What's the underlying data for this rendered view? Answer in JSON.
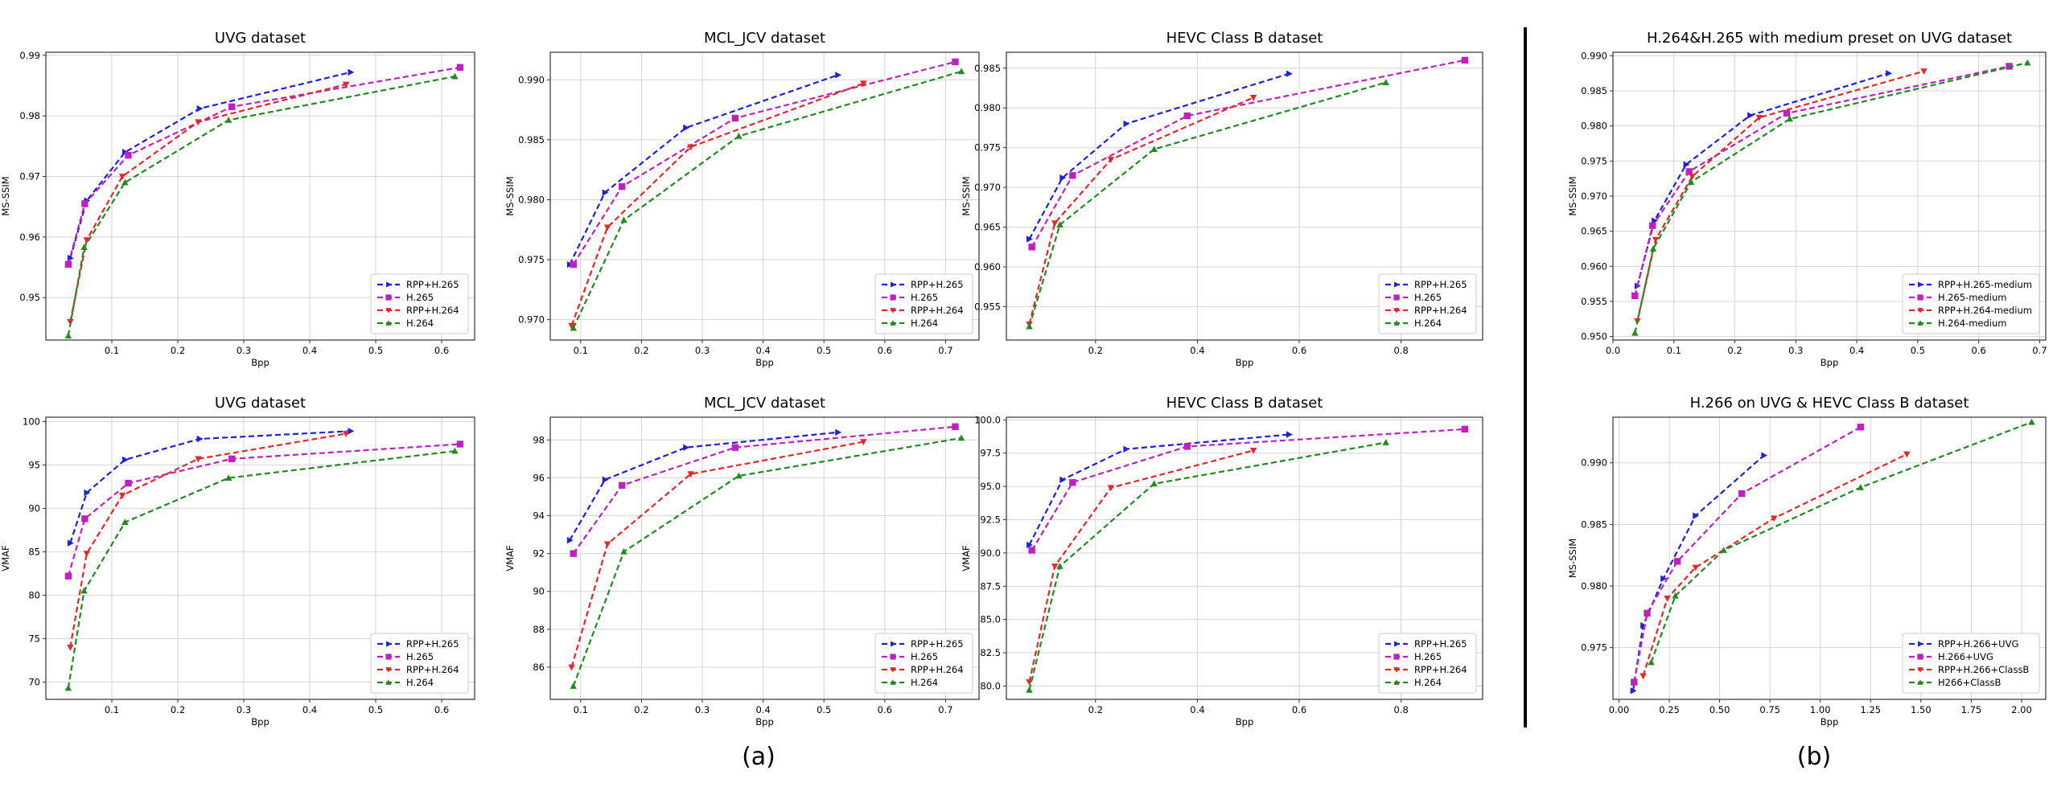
{
  "colors": {
    "rpp265": "#1f1fe0",
    "h265": "#c020c0",
    "rpp264": "#e8262a",
    "h264": "#218a21",
    "grid": "#d4d4d4",
    "axis": "#333333",
    "divider": "#000000"
  },
  "panel_labels": [
    "(a)",
    "(b)"
  ],
  "chart_data": [
    {
      "type": "line",
      "title": "UVG dataset",
      "xlabel": "Bpp",
      "ylabel": "MS-SSIM",
      "xlim": [
        0.0,
        0.65
      ],
      "ylim": [
        0.943,
        0.9905
      ],
      "xticks": [
        0.1,
        0.2,
        0.3,
        0.4,
        0.5,
        0.6
      ],
      "xtick_labels": [
        "0.1",
        "0.2",
        "0.3",
        "0.4",
        "0.5",
        "0.6"
      ],
      "yticks": [
        0.95,
        0.96,
        0.97,
        0.98,
        0.99
      ],
      "ytick_labels": [
        "0.95",
        "0.96",
        "0.97",
        "0.98",
        "0.99"
      ],
      "grid": true,
      "legend_position": "lower-right",
      "series": [
        {
          "name": "RPP+H.265",
          "marker": "right-triangle",
          "color_key": "rpp265",
          "x": [
            0.037,
            0.062,
            0.12,
            0.233,
            0.462
          ],
          "y": [
            0.9565,
            0.966,
            0.974,
            0.9812,
            0.9872
          ]
        },
        {
          "name": "H.265",
          "marker": "square",
          "color_key": "h265",
          "x": [
            0.034,
            0.059,
            0.125,
            0.282,
            0.628
          ],
          "y": [
            0.9555,
            0.9655,
            0.9735,
            0.9815,
            0.988
          ]
        },
        {
          "name": "RPP+H.264",
          "marker": "down-triangle",
          "color_key": "rpp264",
          "x": [
            0.037,
            0.062,
            0.116,
            0.231,
            0.455
          ],
          "y": [
            0.946,
            0.9595,
            0.97,
            0.979,
            0.9852
          ]
        },
        {
          "name": "H.264",
          "marker": "up-triangle",
          "color_key": "h264",
          "x": [
            0.034,
            0.058,
            0.12,
            0.277,
            0.62
          ],
          "y": [
            0.9437,
            0.9583,
            0.969,
            0.9793,
            0.9865
          ]
        }
      ]
    },
    {
      "type": "line",
      "title": "MCL_JCV dataset",
      "xlabel": "Bpp",
      "ylabel": "MS-SSIM",
      "xlim": [
        0.05,
        0.755
      ],
      "ylim": [
        0.9683,
        0.9923
      ],
      "xticks": [
        0.1,
        0.2,
        0.3,
        0.4,
        0.5,
        0.6,
        0.7
      ],
      "xtick_labels": [
        "0.1",
        "0.2",
        "0.3",
        "0.4",
        "0.5",
        "0.6",
        "0.7"
      ],
      "yticks": [
        0.97,
        0.975,
        0.98,
        0.985,
        0.99
      ],
      "ytick_labels": [
        "0.970",
        "0.975",
        "0.980",
        "0.985",
        "0.990"
      ],
      "grid": true,
      "legend_position": "lower-right",
      "series": [
        {
          "name": "RPP+H.265",
          "marker": "right-triangle",
          "color_key": "rpp265",
          "x": [
            0.082,
            0.14,
            0.273,
            0.523
          ],
          "y": [
            0.9746,
            0.9806,
            0.986,
            0.9904
          ]
        },
        {
          "name": "H.265",
          "marker": "square",
          "color_key": "h265",
          "x": [
            0.088,
            0.168,
            0.354,
            0.716
          ],
          "y": [
            0.9746,
            0.9811,
            0.9868,
            0.9915
          ]
        },
        {
          "name": "RPP+H.264",
          "marker": "down-triangle",
          "color_key": "rpp264",
          "x": [
            0.085,
            0.144,
            0.281,
            0.565
          ],
          "y": [
            0.9695,
            0.9777,
            0.9844,
            0.9897
          ]
        },
        {
          "name": "H.264",
          "marker": "up-triangle",
          "color_key": "h264",
          "x": [
            0.088,
            0.171,
            0.36,
            0.726
          ],
          "y": [
            0.9693,
            0.9783,
            0.9853,
            0.9907
          ]
        }
      ]
    },
    {
      "type": "line",
      "title": "HEVC Class B  dataset",
      "xlabel": "Bpp",
      "ylabel": "MS-SSIM",
      "xlim": [
        0.025,
        0.96
      ],
      "ylim": [
        0.9508,
        0.987
      ],
      "xticks": [
        0.2,
        0.4,
        0.6,
        0.8
      ],
      "xtick_labels": [
        "0.2",
        "0.4",
        "0.6",
        "0.8"
      ],
      "yticks": [
        0.955,
        0.96,
        0.965,
        0.97,
        0.975,
        0.98,
        0.985
      ],
      "ytick_labels": [
        "0.955",
        "0.960",
        "0.965",
        "0.970",
        "0.975",
        "0.980",
        "0.985"
      ],
      "grid": true,
      "legend_position": "lower-right",
      "series": [
        {
          "name": "RPP+H.265",
          "marker": "right-triangle",
          "color_key": "rpp265",
          "x": [
            0.07,
            0.135,
            0.26,
            0.58
          ],
          "y": [
            0.9635,
            0.9712,
            0.978,
            0.9843
          ]
        },
        {
          "name": "H.265",
          "marker": "square",
          "color_key": "h265",
          "x": [
            0.075,
            0.155,
            0.38,
            0.925
          ],
          "y": [
            0.9625,
            0.9715,
            0.979,
            0.986
          ]
        },
        {
          "name": "RPP+H.264",
          "marker": "down-triangle",
          "color_key": "rpp264",
          "x": [
            0.07,
            0.12,
            0.23,
            0.51
          ],
          "y": [
            0.9528,
            0.9655,
            0.9735,
            0.9813
          ]
        },
        {
          "name": "H.264",
          "marker": "up-triangle",
          "color_key": "h264",
          "x": [
            0.07,
            0.13,
            0.315,
            0.77
          ],
          "y": [
            0.9525,
            0.9653,
            0.9748,
            0.9832
          ]
        }
      ]
    },
    {
      "type": "line",
      "title": "H.264&H.265 with medium preset on UVG dataset",
      "xlabel": "Bpp",
      "ylabel": "MS-SSIM",
      "xlim": [
        0.0,
        0.71
      ],
      "ylim": [
        0.9495,
        0.9905
      ],
      "xticks": [
        0.0,
        0.1,
        0.2,
        0.3,
        0.4,
        0.5,
        0.6,
        0.7
      ],
      "xtick_labels": [
        "0.0",
        "0.1",
        "0.2",
        "0.3",
        "0.4",
        "0.5",
        "0.6",
        "0.7"
      ],
      "yticks": [
        0.95,
        0.955,
        0.96,
        0.965,
        0.97,
        0.975,
        0.98,
        0.985,
        0.99
      ],
      "ytick_labels": [
        "0.950",
        "0.955",
        "0.960",
        "0.965",
        "0.970",
        "0.975",
        "0.980",
        "0.985",
        "0.990"
      ],
      "grid": true,
      "legend_position": "lower-right",
      "series": [
        {
          "name": "RPP+H.265-medium",
          "marker": "right-triangle",
          "color_key": "rpp265",
          "x": [
            0.04,
            0.068,
            0.12,
            0.225,
            0.452
          ],
          "y": [
            0.9572,
            0.9665,
            0.9745,
            0.9815,
            0.9875
          ]
        },
        {
          "name": "H.265-medium",
          "marker": "square",
          "color_key": "h265",
          "x": [
            0.036,
            0.065,
            0.125,
            0.285,
            0.65
          ],
          "y": [
            0.9558,
            0.9658,
            0.9735,
            0.9818,
            0.9885
          ]
        },
        {
          "name": "RPP+H.264-medium",
          "marker": "down-triangle",
          "color_key": "rpp264",
          "x": [
            0.04,
            0.07,
            0.13,
            0.24,
            0.51
          ],
          "y": [
            0.9522,
            0.9638,
            0.9728,
            0.9812,
            0.9878
          ]
        },
        {
          "name": "H.264-medium",
          "marker": "up-triangle",
          "color_key": "h264",
          "x": [
            0.036,
            0.066,
            0.128,
            0.29,
            0.68
          ],
          "y": [
            0.9505,
            0.9625,
            0.972,
            0.981,
            0.989
          ]
        }
      ]
    },
    {
      "type": "line",
      "title": "UVG dataset",
      "xlabel": "Bpp",
      "ylabel": "VMAF",
      "xlim": [
        0.0,
        0.65
      ],
      "ylim": [
        68.0,
        100.5
      ],
      "xticks": [
        0.1,
        0.2,
        0.3,
        0.4,
        0.5,
        0.6
      ],
      "xtick_labels": [
        "0.1",
        "0.2",
        "0.3",
        "0.4",
        "0.5",
        "0.6"
      ],
      "yticks": [
        70,
        75,
        80,
        85,
        90,
        95,
        100
      ],
      "ytick_labels": [
        "70",
        "75",
        "80",
        "85",
        "90",
        "95",
        "100"
      ],
      "grid": true,
      "legend_position": "lower-right",
      "series": [
        {
          "name": "RPP+H.265",
          "marker": "right-triangle",
          "color_key": "rpp265",
          "x": [
            0.037,
            0.062,
            0.12,
            0.233,
            0.462
          ],
          "y": [
            86.0,
            91.8,
            95.6,
            98.0,
            98.9
          ]
        },
        {
          "name": "H.265",
          "marker": "square",
          "color_key": "h265",
          "x": [
            0.034,
            0.059,
            0.125,
            0.282,
            0.628
          ],
          "y": [
            82.2,
            88.8,
            92.9,
            95.7,
            97.4
          ]
        },
        {
          "name": "RPP+H.264",
          "marker": "down-triangle",
          "color_key": "rpp264",
          "x": [
            0.037,
            0.062,
            0.116,
            0.231,
            0.455
          ],
          "y": [
            74.0,
            84.8,
            91.5,
            95.7,
            98.6
          ]
        },
        {
          "name": "H.264",
          "marker": "up-triangle",
          "color_key": "h264",
          "x": [
            0.034,
            0.058,
            0.12,
            0.277,
            0.62
          ],
          "y": [
            69.3,
            80.5,
            88.4,
            93.5,
            96.6
          ]
        }
      ]
    },
    {
      "type": "line",
      "title": "MCL_JCV dataset",
      "xlabel": "Bpp",
      "ylabel": "VMAF",
      "xlim": [
        0.05,
        0.755
      ],
      "ylim": [
        84.3,
        99.2
      ],
      "xticks": [
        0.1,
        0.2,
        0.3,
        0.4,
        0.5,
        0.6,
        0.7
      ],
      "xtick_labels": [
        "0.1",
        "0.2",
        "0.3",
        "0.4",
        "0.5",
        "0.6",
        "0.7"
      ],
      "yticks": [
        86,
        88,
        90,
        92,
        94,
        96,
        98
      ],
      "ytick_labels": [
        "86",
        "88",
        "90",
        "92",
        "94",
        "96",
        "98"
      ],
      "grid": true,
      "legend_position": "lower-right",
      "series": [
        {
          "name": "RPP+H.265",
          "marker": "right-triangle",
          "color_key": "rpp265",
          "x": [
            0.082,
            0.14,
            0.273,
            0.523
          ],
          "y": [
            92.7,
            95.9,
            97.6,
            98.4
          ]
        },
        {
          "name": "H.265",
          "marker": "square",
          "color_key": "h265",
          "x": [
            0.088,
            0.168,
            0.354,
            0.716
          ],
          "y": [
            92.0,
            95.6,
            97.6,
            98.7
          ]
        },
        {
          "name": "RPP+H.264",
          "marker": "down-triangle",
          "color_key": "rpp264",
          "x": [
            0.085,
            0.144,
            0.281,
            0.565
          ],
          "y": [
            86.0,
            92.5,
            96.2,
            97.9
          ]
        },
        {
          "name": "H.264",
          "marker": "up-triangle",
          "color_key": "h264",
          "x": [
            0.088,
            0.171,
            0.36,
            0.726
          ],
          "y": [
            85.0,
            92.1,
            96.1,
            98.1
          ]
        }
      ]
    },
    {
      "type": "line",
      "title": "HEVC Class B dataset",
      "xlabel": "Bpp",
      "ylabel": "VMAF",
      "xlim": [
        0.025,
        0.96
      ],
      "ylim": [
        79.0,
        100.2
      ],
      "xticks": [
        0.2,
        0.4,
        0.6,
        0.8
      ],
      "xtick_labels": [
        "0.2",
        "0.4",
        "0.6",
        "0.8"
      ],
      "yticks": [
        80.0,
        82.5,
        85.0,
        87.5,
        90.0,
        92.5,
        95.0,
        97.5,
        100.0
      ],
      "ytick_labels": [
        "80.0",
        "82.5",
        "85.0",
        "87.5",
        "90.0",
        "92.5",
        "95.0",
        "97.5",
        "100.0"
      ],
      "grid": true,
      "legend_position": "lower-right",
      "series": [
        {
          "name": "RPP+H.265",
          "marker": "right-triangle",
          "color_key": "rpp265",
          "x": [
            0.07,
            0.135,
            0.26,
            0.58
          ],
          "y": [
            90.6,
            95.5,
            97.8,
            98.9
          ]
        },
        {
          "name": "H.265",
          "marker": "square",
          "color_key": "h265",
          "x": [
            0.075,
            0.155,
            0.38,
            0.925
          ],
          "y": [
            90.2,
            95.3,
            98.0,
            99.3
          ]
        },
        {
          "name": "RPP+H.264",
          "marker": "down-triangle",
          "color_key": "rpp264",
          "x": [
            0.07,
            0.12,
            0.23,
            0.51
          ],
          "y": [
            80.3,
            89.0,
            94.9,
            97.7
          ]
        },
        {
          "name": "H.264",
          "marker": "up-triangle",
          "color_key": "h264",
          "x": [
            0.07,
            0.13,
            0.315,
            0.77
          ],
          "y": [
            79.7,
            89.0,
            95.2,
            98.3
          ]
        }
      ]
    },
    {
      "type": "line",
      "title": "H.266 on UVG & HEVC Class B dataset",
      "xlabel": "Bpp",
      "ylabel": "MS-SSIM",
      "xlim": [
        -0.03,
        2.12
      ],
      "ylim": [
        0.9708,
        0.9937
      ],
      "xticks": [
        0.0,
        0.25,
        0.5,
        0.75,
        1.0,
        1.25,
        1.5,
        1.75,
        2.0
      ],
      "xtick_labels": [
        "0.00",
        "0.25",
        "0.50",
        "0.75",
        "1.00",
        "1.25",
        "1.50",
        "1.75",
        "2.00"
      ],
      "yticks": [
        0.975,
        0.98,
        0.985,
        0.99
      ],
      "ytick_labels": [
        "0.975",
        "0.980",
        "0.985",
        "0.990"
      ],
      "grid": true,
      "legend_position": "lower-right",
      "series": [
        {
          "name": "RPP+H.266+UVG",
          "marker": "right-triangle",
          "color_key": "rpp265",
          "x": [
            0.07,
            0.12,
            0.22,
            0.38,
            0.72
          ],
          "y": [
            0.9715,
            0.9768,
            0.9806,
            0.9857,
            0.9906
          ]
        },
        {
          "name": "H.266+UVG",
          "marker": "square",
          "color_key": "h265",
          "x": [
            0.075,
            0.14,
            0.29,
            0.61,
            1.2
          ],
          "y": [
            0.9722,
            0.9778,
            0.982,
            0.9875,
            0.9929
          ]
        },
        {
          "name": "RPP+H.266+ClassB",
          "marker": "down-triangle",
          "color_key": "rpp264",
          "x": [
            0.12,
            0.24,
            0.38,
            0.77,
            1.43
          ],
          "y": [
            0.9727,
            0.979,
            0.9815,
            0.9855,
            0.9907
          ]
        },
        {
          "name": "H266+ClassB",
          "marker": "up-triangle",
          "color_key": "h264",
          "x": [
            0.16,
            0.28,
            0.52,
            1.2,
            2.05
          ],
          "y": [
            0.9738,
            0.9792,
            0.9829,
            0.988,
            0.9933
          ]
        }
      ]
    }
  ]
}
